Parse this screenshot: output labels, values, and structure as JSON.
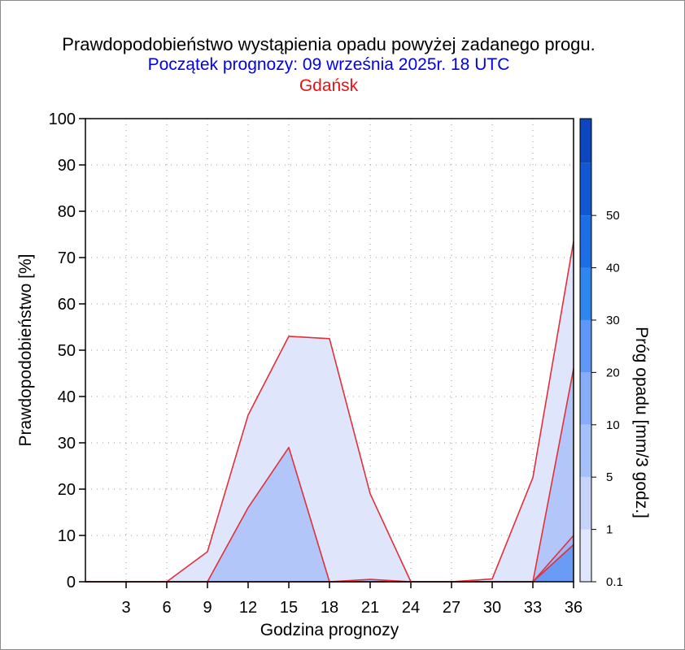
{
  "chart_data": {
    "type": "area",
    "title": "Prawdopodobieństwo wystąpienia opadu powyżej zadanego progu.",
    "subtitle": "Początek prognozy: 09 września 2025r. 18 UTC",
    "location": "Gdańsk",
    "xlabel": "Godzina prognozy",
    "ylabel": "Prawdopodobieństwo [%]",
    "colorbar_label": "Próg opadu [mm/3 godz.]",
    "xlim": [
      0,
      36
    ],
    "ylim": [
      0,
      100
    ],
    "x_ticks": [
      3,
      6,
      9,
      12,
      15,
      18,
      21,
      24,
      27,
      30,
      33,
      36
    ],
    "y_ticks": [
      0,
      10,
      20,
      30,
      40,
      50,
      60,
      70,
      80,
      90,
      100
    ],
    "colorbar_ticks": [
      "0.1",
      "1",
      "5",
      "10",
      "20",
      "30",
      "40",
      "50"
    ],
    "colorbar_colors": [
      "#dfe6fb",
      "#c6d4fa",
      "#a6c1fa",
      "#87adf9",
      "#5e98f6",
      "#2f86ef",
      "#1d6ee6",
      "#1258d4",
      "#0c47c0"
    ],
    "x": [
      0,
      3,
      6,
      9,
      12,
      15,
      18,
      21,
      24,
      27,
      30,
      33,
      36
    ],
    "series": [
      {
        "threshold": "0.1",
        "color": "#dfe6fb",
        "values": [
          0,
          0,
          0,
          6.5,
          36,
          53,
          52.5,
          19,
          0,
          0,
          0.6,
          22.5,
          73.5
        ]
      },
      {
        "threshold": "1",
        "color": "#b3c6f9",
        "values": [
          0,
          0,
          0,
          0,
          16,
          29,
          0,
          0.5,
          0,
          0,
          0,
          0,
          46
        ]
      },
      {
        "threshold": "5",
        "color": "#9db6f7",
        "values": [
          0,
          0,
          0,
          0,
          0,
          0,
          0,
          0,
          0,
          0,
          0,
          0,
          10
        ]
      },
      {
        "threshold": "10",
        "color": "#6a9bf5",
        "values": [
          0,
          0,
          0,
          0,
          0,
          0,
          0,
          0,
          0,
          0,
          0,
          0,
          8
        ]
      }
    ],
    "grid": true,
    "line_color": "#e0303a"
  }
}
